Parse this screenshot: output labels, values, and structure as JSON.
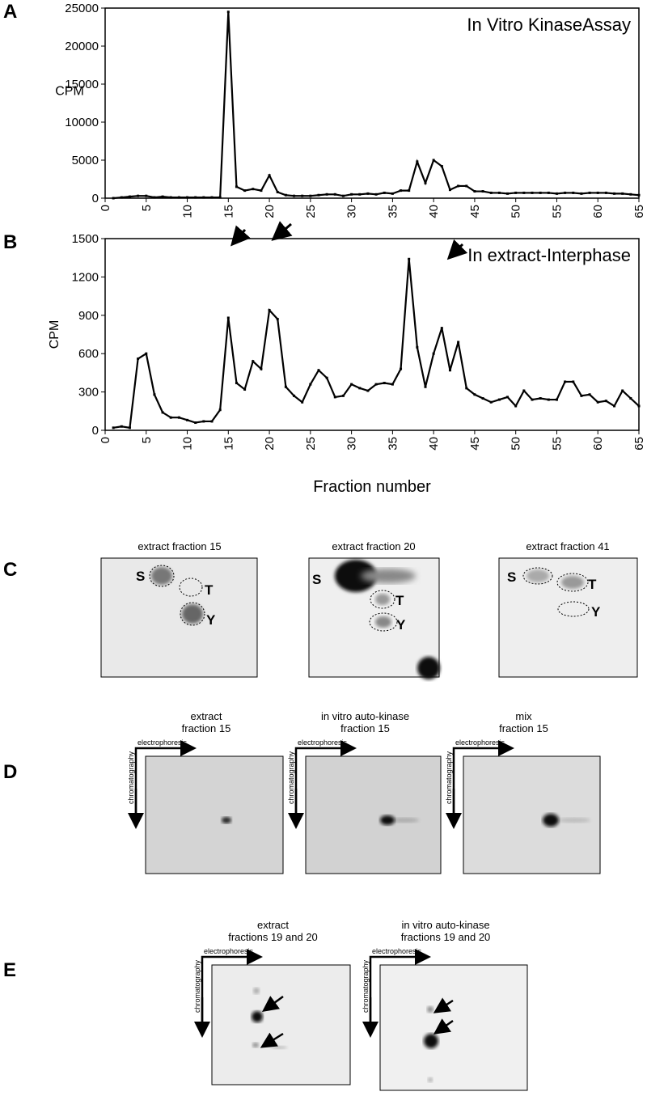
{
  "chart_data": [
    {
      "type": "line",
      "panel": "A",
      "title": "In Vitro KinaseAssay",
      "y_label": "CPM",
      "x": [
        1,
        2,
        3,
        4,
        5,
        6,
        7,
        8,
        9,
        10,
        11,
        12,
        13,
        14,
        15,
        16,
        17,
        18,
        19,
        20,
        21,
        22,
        23,
        24,
        25,
        26,
        27,
        28,
        29,
        30,
        31,
        32,
        33,
        34,
        35,
        36,
        37,
        38,
        39,
        40,
        41,
        42,
        43,
        44,
        45,
        46,
        47,
        48,
        49,
        50,
        51,
        52,
        53,
        54,
        55,
        56,
        57,
        58,
        59,
        60,
        61,
        62,
        63,
        64,
        65
      ],
      "series": [
        {
          "color": "#000000",
          "values": [
            0,
            100,
            200,
            300,
            300,
            100,
            200,
            100,
            100,
            100,
            100,
            100,
            100,
            100,
            24500,
            1500,
            1000,
            1200,
            1000,
            3000,
            800,
            400,
            300,
            300,
            300,
            400,
            500,
            500,
            300,
            500,
            500,
            600,
            500,
            700,
            600,
            1000,
            1000,
            4800,
            2000,
            5000,
            4200,
            1100,
            1600,
            1600,
            900,
            900,
            700,
            700,
            600,
            700,
            700,
            700,
            700,
            700,
            600,
            700,
            700,
            600,
            700,
            700,
            700,
            600,
            600,
            500,
            400
          ]
        }
      ],
      "xlim": [
        0,
        65
      ],
      "xticks": [
        0,
        5,
        10,
        15,
        20,
        25,
        30,
        35,
        40,
        45,
        50,
        55,
        60,
        65
      ],
      "ylim": [
        0,
        25000
      ],
      "yticks": [
        0,
        5000,
        10000,
        15000,
        20000,
        25000
      ]
    },
    {
      "type": "line",
      "panel": "B",
      "title": "In extract-Interphase",
      "y_label": "CPM",
      "x_label": "Fraction number",
      "x": [
        1,
        2,
        3,
        4,
        5,
        6,
        7,
        8,
        9,
        10,
        11,
        12,
        13,
        14,
        15,
        16,
        17,
        18,
        19,
        20,
        21,
        22,
        23,
        24,
        25,
        26,
        27,
        28,
        29,
        30,
        31,
        32,
        33,
        34,
        35,
        36,
        37,
        38,
        39,
        40,
        41,
        42,
        43,
        44,
        45,
        46,
        47,
        48,
        49,
        50,
        51,
        52,
        53,
        54,
        55,
        56,
        57,
        58,
        59,
        60,
        61,
        62,
        63,
        64,
        65
      ],
      "series": [
        {
          "color": "#000000",
          "values": [
            20,
            30,
            20,
            560,
            600,
            280,
            140,
            100,
            100,
            80,
            60,
            70,
            70,
            160,
            880,
            370,
            320,
            540,
            480,
            940,
            870,
            340,
            270,
            220,
            360,
            470,
            410,
            260,
            270,
            360,
            330,
            310,
            360,
            370,
            360,
            480,
            1340,
            650,
            340,
            600,
            800,
            470,
            690,
            330,
            280,
            250,
            220,
            240,
            260,
            190,
            310,
            240,
            250,
            240,
            240,
            380,
            380,
            270,
            280,
            220,
            230,
            190,
            310,
            250,
            190
          ]
        }
      ],
      "xlim": [
        0,
        65
      ],
      "xticks": [
        0,
        5,
        10,
        15,
        20,
        25,
        30,
        35,
        40,
        45,
        50,
        55,
        60,
        65
      ],
      "ylim": [
        0,
        1500
      ],
      "yticks": [
        0,
        300,
        600,
        900,
        1200,
        1500
      ]
    }
  ],
  "panel_c": {
    "label": "C",
    "images": [
      {
        "title": "extract fraction 15",
        "spots": [
          "S",
          "T",
          "Y"
        ]
      },
      {
        "title": "extract fraction 20",
        "spots": [
          "S",
          "T",
          "Y"
        ]
      },
      {
        "title": "extract fraction 41",
        "spots": [
          "S",
          "T",
          "Y"
        ]
      }
    ]
  },
  "panel_d": {
    "label": "D",
    "axes": {
      "horizontal": "electrophoresis",
      "vertical": "chromatography"
    },
    "images": [
      {
        "title": [
          "extract",
          "fraction 15"
        ]
      },
      {
        "title": [
          "in vitro auto-kinase",
          "fraction 15"
        ]
      },
      {
        "title": [
          "mix",
          "fraction 15"
        ]
      }
    ]
  },
  "panel_e": {
    "label": "E",
    "axes": {
      "horizontal": "electrophoresis",
      "vertical": "chromatography"
    },
    "images": [
      {
        "title": [
          "extract",
          "fractions 19 and 20"
        ]
      },
      {
        "title": [
          "in vitro auto-kinase",
          "fractions 19 and 20"
        ]
      }
    ]
  }
}
